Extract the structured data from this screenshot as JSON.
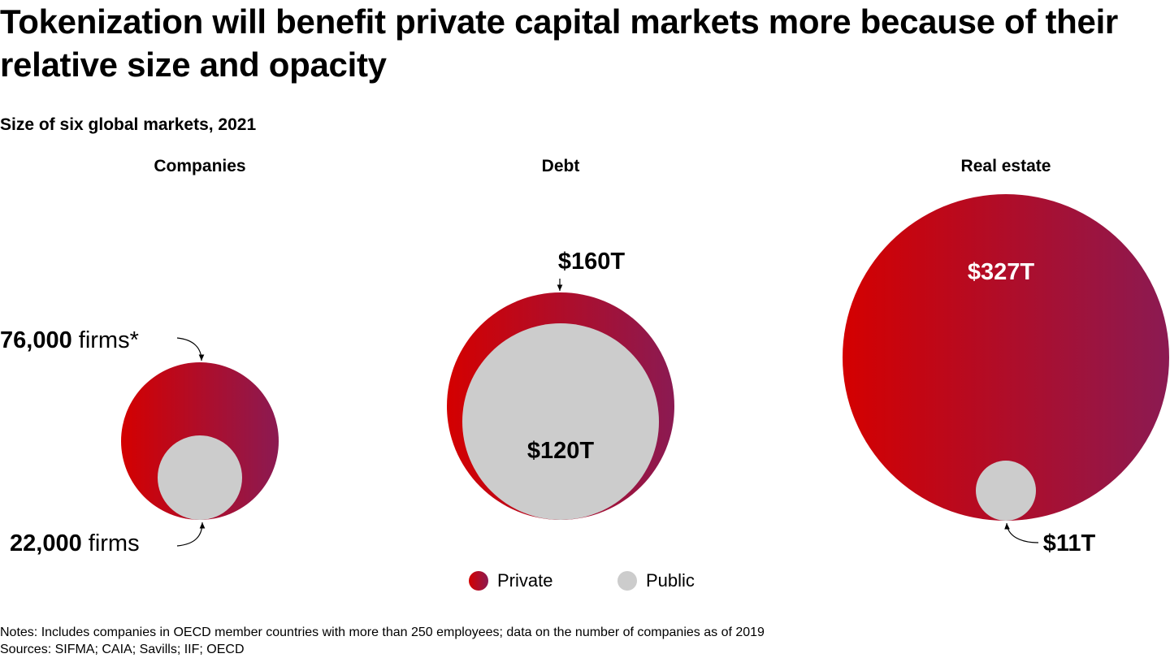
{
  "title": "Tokenization will benefit private capital markets more because of their relative size and opacity",
  "subtitle": "Size of six global markets, 2021",
  "colors": {
    "private_start": "#d40000",
    "private_end": "#8b1a52",
    "public": "#cccccc"
  },
  "chart_data": {
    "type": "bubble",
    "title": "Size of six global markets, 2021",
    "legend_position": "bottom-center",
    "legend": [
      "Private",
      "Public"
    ],
    "categories": [
      "Companies",
      "Debt",
      "Real estate"
    ],
    "series": [
      {
        "name": "Private",
        "values": [
          76000,
          160,
          327
        ],
        "labels": [
          "76,000",
          "$160T",
          "$327T"
        ],
        "label_suffix": [
          " firms*",
          "",
          ""
        ]
      },
      {
        "name": "Public",
        "values": [
          22000,
          120,
          11
        ],
        "labels": [
          "22,000",
          "$120T",
          "$11T"
        ],
        "label_suffix": [
          " firms",
          "",
          ""
        ]
      }
    ]
  },
  "notes": [
    "Notes: Includes companies in OECD member countries with more than 250 employees; data on the number of companies as of 2019",
    "Sources: SIFMA; CAIA; Savills; IIF; OECD"
  ]
}
